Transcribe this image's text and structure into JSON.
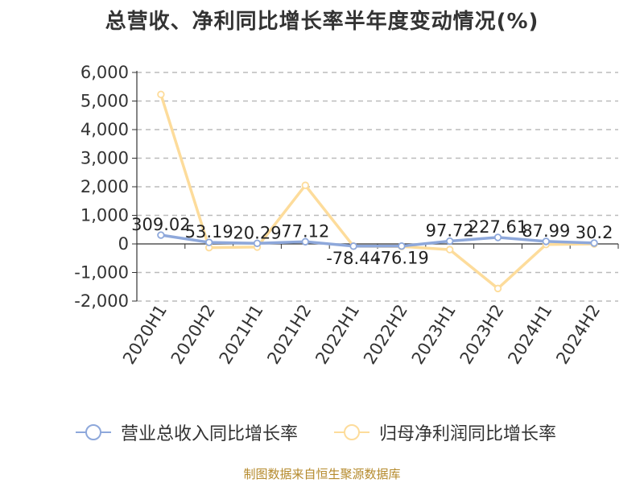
{
  "title": "总营收、净利同比增长率半年度变动情况(%)",
  "source": "制图数据来自恒生聚源数据库",
  "legend": {
    "revenue_label": "营业总收入同比增长率",
    "profit_label": "归母净利润同比增长率"
  },
  "colors": {
    "revenue": "#8ea8db",
    "profit": "#fddc9b",
    "grid": "#bbbbbb",
    "axis": "#333333",
    "source": "#b58a2c"
  },
  "chart_data": {
    "type": "line",
    "title": "总营收、净利同比增长率半年度变动情况(%)",
    "categories": [
      "2020H1",
      "2020H2",
      "2021H1",
      "2021H2",
      "2022H1",
      "2022H2",
      "2023H1",
      "2023H2",
      "2024H1",
      "2024H2"
    ],
    "y_ticks": [
      "6,000",
      "5,000",
      "4,000",
      "3,000",
      "2,000",
      "1,000",
      "0",
      "-1,000",
      "-2,000"
    ],
    "ylim": [
      -2000,
      6000
    ],
    "grid": true,
    "legend_position": "bottom",
    "series": [
      {
        "name": "营业总收入同比增长率",
        "values": [
          309.02,
          53.19,
          20.29,
          77.12,
          -78.44,
          -76.19,
          97.72,
          227.61,
          87.99,
          30.2
        ],
        "labels": [
          "309.02",
          "53.19",
          "20.29",
          "77.12",
          "-78.44",
          "-76.19",
          "97.72",
          "227.61",
          "87.99",
          "30.2"
        ]
      },
      {
        "name": "归母净利润同比增长率",
        "values": [
          5230,
          -130,
          -110,
          2050,
          -80,
          -90,
          -200,
          -1560,
          -20,
          0
        ]
      }
    ]
  }
}
